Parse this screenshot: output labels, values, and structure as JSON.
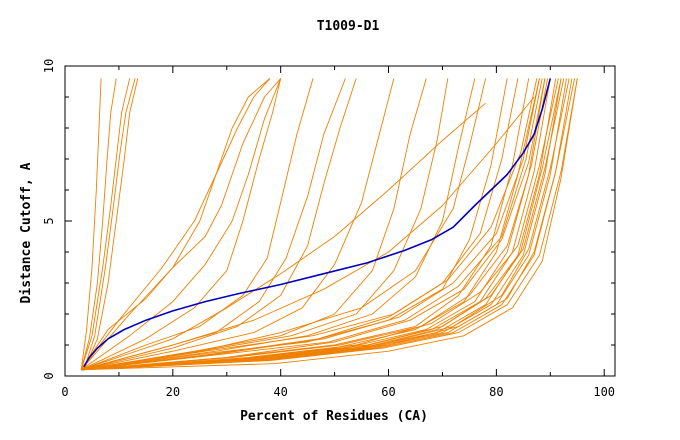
{
  "chart_data": {
    "type": "line",
    "title": "T1009-D1",
    "xlabel": "Percent of Residues (CA)",
    "ylabel": "Distance Cutoff, A",
    "xlim": [
      0,
      102
    ],
    "ylim": [
      0,
      10
    ],
    "x_ticks": [
      "0",
      "20",
      "40",
      "60",
      "80",
      "100"
    ],
    "y_ticks": [
      "0",
      "5",
      "10"
    ],
    "colors": {
      "other": "#f08000",
      "highlight": "#0000c0",
      "axes": "#000000"
    },
    "highlight_series": {
      "x": [
        3.5,
        4.5,
        6,
        8,
        11,
        15,
        20,
        26,
        32,
        40,
        48,
        56,
        63,
        68,
        72,
        76,
        79,
        82,
        85,
        87,
        88.5,
        90
      ],
      "y": [
        0.3,
        0.6,
        0.9,
        1.2,
        1.5,
        1.8,
        2.1,
        2.4,
        2.65,
        2.95,
        3.3,
        3.65,
        4.05,
        4.4,
        4.8,
        5.5,
        6.0,
        6.5,
        7.2,
        7.8,
        8.6,
        9.6
      ]
    },
    "other_series": [
      {
        "x": [
          3,
          4,
          5,
          5.8,
          6.3,
          6.7
        ],
        "y": [
          0.2,
          1.5,
          3.5,
          6.0,
          8.0,
          9.6
        ]
      },
      {
        "x": [
          3,
          4.5,
          6,
          7,
          7.8,
          8.5,
          9.5
        ],
        "y": [
          0.2,
          1.2,
          3.0,
          5.0,
          7.0,
          8.5,
          9.6
        ]
      },
      {
        "x": [
          3,
          5,
          7,
          8.5,
          9.5,
          10.5,
          12
        ],
        "y": [
          0.2,
          1.3,
          3.5,
          5.5,
          7.0,
          8.5,
          9.6
        ]
      },
      {
        "x": [
          3.5,
          5.5,
          7.5,
          9,
          10.2,
          11.3,
          13
        ],
        "y": [
          0.2,
          1.3,
          3.5,
          5.5,
          7.2,
          8.5,
          9.6
        ]
      },
      {
        "x": [
          3.5,
          6,
          8,
          9.5,
          11,
          12,
          13.5
        ],
        "y": [
          0.2,
          1.2,
          3.0,
          5.0,
          7.0,
          8.5,
          9.6
        ]
      },
      {
        "x": [
          3,
          8,
          15,
          20,
          25,
          28,
          31,
          34,
          38
        ],
        "y": [
          0.2,
          1.5,
          2.5,
          3.5,
          5.0,
          6.5,
          8.0,
          9.0,
          9.6
        ]
      },
      {
        "x": [
          3,
          10,
          18,
          24,
          28,
          32,
          35,
          38
        ],
        "y": [
          0.2,
          1.8,
          3.5,
          5.0,
          6.5,
          8.0,
          9.0,
          9.6
        ]
      },
      {
        "x": [
          3,
          12,
          20,
          26,
          29,
          33,
          37,
          40
        ],
        "y": [
          0.2,
          2.0,
          3.5,
          4.5,
          5.5,
          7.5,
          9.0,
          9.6
        ]
      },
      {
        "x": [
          3,
          15,
          24,
          30,
          33,
          36,
          38.5,
          40
        ],
        "y": [
          0.2,
          1.2,
          2.2,
          3.4,
          5.0,
          7.0,
          8.5,
          9.6
        ]
      },
      {
        "x": [
          3,
          12,
          20,
          26,
          31,
          34,
          37,
          40
        ],
        "y": [
          0.2,
          1.3,
          2.4,
          3.6,
          5.0,
          6.5,
          8.3,
          9.6
        ]
      },
      {
        "x": [
          3,
          15,
          25,
          33,
          37.5,
          40,
          43,
          46
        ],
        "y": [
          0.2,
          1.0,
          1.6,
          2.6,
          3.8,
          5.6,
          7.8,
          9.6
        ]
      },
      {
        "x": [
          3,
          18,
          28,
          36,
          41,
          45,
          48,
          52
        ],
        "y": [
          0.2,
          0.9,
          1.4,
          2.4,
          3.8,
          5.8,
          7.8,
          9.6
        ]
      },
      {
        "x": [
          3,
          20,
          32,
          40,
          45,
          48,
          51,
          54
        ],
        "y": [
          0.2,
          0.9,
          1.6,
          2.6,
          4.2,
          6.2,
          8.0,
          9.6
        ]
      },
      {
        "x": [
          3,
          20,
          35,
          44,
          50,
          55,
          58,
          61
        ],
        "y": [
          0.2,
          0.8,
          1.4,
          2.2,
          3.6,
          5.6,
          7.6,
          9.6
        ]
      },
      {
        "x": [
          3,
          24,
          40,
          50,
          57,
          61,
          64,
          67
        ],
        "y": [
          0.2,
          0.8,
          1.3,
          2.0,
          3.4,
          5.4,
          7.8,
          9.6
        ]
      },
      {
        "x": [
          3,
          25,
          42,
          54,
          61,
          66,
          69,
          71
        ],
        "y": [
          0.2,
          0.8,
          1.3,
          2.0,
          3.4,
          5.4,
          7.6,
          9.6
        ]
      },
      {
        "x": [
          3,
          28,
          45,
          57,
          65,
          70,
          73,
          76
        ],
        "y": [
          0.2,
          0.8,
          1.3,
          2.0,
          3.2,
          5.0,
          7.4,
          9.6
        ]
      },
      {
        "x": [
          3,
          20,
          35,
          48,
          60,
          70,
          80,
          87
        ],
        "y": [
          0.2,
          1.0,
          1.8,
          2.8,
          4.0,
          5.5,
          7.5,
          9.0
        ]
      },
      {
        "x": [
          3,
          20,
          30,
          40,
          50,
          60,
          70,
          78
        ],
        "y": [
          0.2,
          1.2,
          2.2,
          3.3,
          4.5,
          6.0,
          7.6,
          8.8
        ]
      },
      {
        "x": [
          3,
          25,
          40,
          55,
          65,
          72,
          75,
          78
        ],
        "y": [
          0.2,
          0.8,
          1.4,
          2.2,
          3.4,
          5.4,
          7.4,
          9.6
        ]
      },
      {
        "x": [
          3,
          25,
          45,
          60,
          70,
          75,
          79,
          82
        ],
        "y": [
          0.2,
          0.7,
          1.1,
          1.8,
          2.8,
          4.4,
          6.8,
          9.6
        ]
      },
      {
        "x": [
          3,
          30,
          50,
          65,
          73,
          79,
          83,
          86
        ],
        "y": [
          0.2,
          0.6,
          1.0,
          1.6,
          2.6,
          4.2,
          6.8,
          9.6
        ]
      },
      {
        "x": [
          3,
          30,
          50,
          65,
          74,
          80,
          84,
          88
        ],
        "y": [
          0.2,
          0.5,
          0.9,
          1.5,
          2.4,
          4.0,
          6.5,
          9.6
        ]
      },
      {
        "x": [
          3,
          32,
          52,
          67,
          76,
          82,
          86,
          89
        ],
        "y": [
          0.2,
          0.5,
          0.9,
          1.5,
          2.4,
          4.0,
          6.5,
          9.6
        ]
      },
      {
        "x": [
          3,
          33,
          54,
          68,
          77,
          83,
          87,
          90
        ],
        "y": [
          0.2,
          0.5,
          0.9,
          1.5,
          2.4,
          4.0,
          6.6,
          9.6
        ]
      },
      {
        "x": [
          3,
          34,
          55,
          69,
          78,
          84,
          88,
          91
        ],
        "y": [
          0.2,
          0.5,
          0.9,
          1.4,
          2.3,
          3.9,
          6.5,
          9.6
        ]
      },
      {
        "x": [
          3,
          35,
          56,
          70,
          79,
          85,
          89,
          92
        ],
        "y": [
          0.2,
          0.5,
          0.9,
          1.4,
          2.3,
          3.9,
          6.5,
          9.6
        ]
      },
      {
        "x": [
          3,
          36,
          57,
          71,
          80,
          86,
          90,
          93
        ],
        "y": [
          0.2,
          0.5,
          0.9,
          1.4,
          2.3,
          3.9,
          6.5,
          9.6
        ]
      },
      {
        "x": [
          3,
          37,
          58,
          72,
          81,
          87,
          91,
          94
        ],
        "y": [
          0.2,
          0.5,
          0.9,
          1.4,
          2.3,
          3.9,
          6.6,
          9.6
        ]
      },
      {
        "x": [
          3,
          38,
          59,
          73,
          82,
          88,
          92,
          95
        ],
        "y": [
          0.2,
          0.5,
          0.9,
          1.4,
          2.3,
          3.9,
          6.6,
          9.6
        ]
      },
      {
        "x": [
          3,
          30,
          50,
          64,
          74,
          81,
          86,
          89
        ],
        "y": [
          0.2,
          0.6,
          1.1,
          1.8,
          2.8,
          4.4,
          6.9,
          9.6
        ]
      },
      {
        "x": [
          3,
          28,
          48,
          62,
          72,
          80,
          85,
          88
        ],
        "y": [
          0.2,
          0.7,
          1.2,
          1.9,
          3.0,
          4.6,
          7.0,
          9.6
        ]
      },
      {
        "x": [
          3,
          34,
          54,
          68,
          77,
          84,
          88,
          91.5
        ],
        "y": [
          0.2,
          0.6,
          1.0,
          1.7,
          2.7,
          4.2,
          6.8,
          9.6
        ]
      },
      {
        "x": [
          3,
          36,
          56,
          70,
          79,
          85,
          89,
          92.5
        ],
        "y": [
          0.2,
          0.6,
          1.0,
          1.6,
          2.6,
          4.1,
          6.7,
          9.6
        ]
      },
      {
        "x": [
          3,
          38,
          58,
          72,
          81,
          86,
          90,
          93.5
        ],
        "y": [
          0.2,
          0.6,
          1.0,
          1.6,
          2.6,
          4.1,
          6.7,
          9.6
        ]
      },
      {
        "x": [
          3,
          40,
          60,
          73,
          82,
          87,
          91,
          94.5
        ],
        "y": [
          0.2,
          0.6,
          1.0,
          1.6,
          2.5,
          4.0,
          6.6,
          9.6
        ]
      },
      {
        "x": [
          3,
          31,
          51,
          66,
          75,
          82,
          86.5,
          89.5
        ],
        "y": [
          0.2,
          0.6,
          1.0,
          1.6,
          2.6,
          4.2,
          6.8,
          9.6
        ]
      },
      {
        "x": [
          3,
          29,
          49,
          63,
          73,
          81,
          85.5,
          88.5
        ],
        "y": [
          0.2,
          0.7,
          1.1,
          1.8,
          2.9,
          4.5,
          7.0,
          9.6
        ]
      },
      {
        "x": [
          3,
          26,
          46,
          61,
          71,
          79,
          84.5,
          87.5
        ],
        "y": [
          0.2,
          0.8,
          1.3,
          2.0,
          3.1,
          4.8,
          7.2,
          9.6
        ]
      },
      {
        "x": [
          3,
          35,
          55,
          69,
          78,
          84.5,
          88.5,
          92
        ],
        "y": [
          0.2,
          0.5,
          0.9,
          1.5,
          2.5,
          4.0,
          6.7,
          9.6
        ]
      },
      {
        "x": [
          3,
          39,
          60,
          74,
          83,
          88.5,
          92,
          95
        ],
        "y": [
          0.2,
          0.4,
          0.8,
          1.3,
          2.2,
          3.7,
          6.4,
          9.6
        ]
      },
      {
        "x": [
          3,
          27,
          47,
          60,
          70,
          77,
          81,
          84
        ],
        "y": [
          0.2,
          0.7,
          1.2,
          1.9,
          3.0,
          4.6,
          7.0,
          9.6
        ]
      }
    ]
  }
}
